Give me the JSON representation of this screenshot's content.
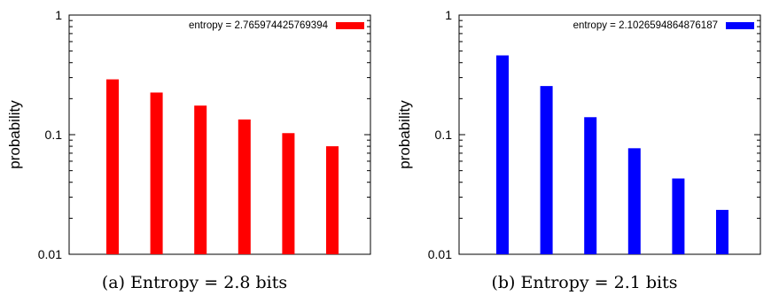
{
  "chart_data": [
    {
      "type": "bar",
      "ylabel": "probability",
      "yscale": "log",
      "ylim": [
        0.01,
        1
      ],
      "yticks": [
        "0.01",
        "0.1",
        "1"
      ],
      "grid": false,
      "legend_position": "top-right",
      "caption": "(a) Entropy = 2.8 bits",
      "series": [
        {
          "name": "entropy = 2.765974425769394",
          "color": "#ff0000",
          "values": [
            0.29,
            0.225,
            0.175,
            0.134,
            0.103,
            0.08
          ]
        }
      ]
    },
    {
      "type": "bar",
      "ylabel": "probability",
      "yscale": "log",
      "ylim": [
        0.01,
        1
      ],
      "yticks": [
        "0.01",
        "0.1",
        "1"
      ],
      "grid": false,
      "legend_position": "top-right",
      "caption": "(b) Entropy = 2.1 bits",
      "series": [
        {
          "name": "entropy = 2.1026594864876187",
          "color": "#0000ff",
          "values": [
            0.46,
            0.255,
            0.14,
            0.077,
            0.043,
            0.0235
          ]
        }
      ]
    }
  ]
}
